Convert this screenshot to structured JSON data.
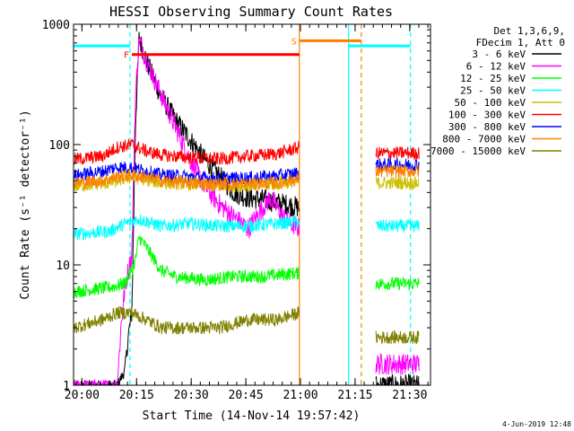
{
  "chart_data": {
    "type": "line",
    "title": "HESSI Observing Summary Count Rates",
    "xlabel": "Start Time (14-Nov-14 19:57:42)",
    "ylabel": "Count Rate (s⁻¹ detector⁻¹)",
    "x_unit": "minutes since 19:57:42",
    "xlim": [
      0,
      98
    ],
    "ylim": [
      1,
      1000
    ],
    "y_scale": "log",
    "x_ticks": [
      {
        "x": 2.3,
        "label": "20:00"
      },
      {
        "x": 17.3,
        "label": "20:15"
      },
      {
        "x": 32.3,
        "label": "20:30"
      },
      {
        "x": 47.3,
        "label": "20:45"
      },
      {
        "x": 62.3,
        "label": "21:00"
      },
      {
        "x": 77.3,
        "label": "21:15"
      },
      {
        "x": 92.3,
        "label": "21:30"
      }
    ],
    "y_ticks": [
      {
        "y": 1,
        "label": "1"
      },
      {
        "y": 10,
        "label": "10"
      },
      {
        "y": 100,
        "label": "100"
      },
      {
        "y": 1000,
        "label": "1000"
      }
    ],
    "legend": {
      "position": "right",
      "header": [
        "Det 1,3,6,9,",
        "FDecim 1, Att 0"
      ]
    },
    "series": [
      {
        "name": "3 - 6 keV",
        "color": "#000000",
        "x": [
          0,
          12,
          14,
          15,
          16,
          17,
          18,
          20,
          24,
          28,
          32,
          36,
          40,
          44,
          48,
          52,
          56,
          60,
          62
        ],
        "y": [
          1,
          1,
          1.3,
          2.5,
          4,
          150,
          760,
          500,
          250,
          160,
          110,
          75,
          55,
          40,
          36,
          35,
          33,
          31,
          30
        ]
      },
      {
        "name": "6 - 12 keV",
        "color": "#ff00ff",
        "x": [
          0,
          12,
          13,
          14,
          15,
          16,
          17,
          18,
          20,
          24,
          28,
          32,
          36,
          40,
          44,
          48,
          52,
          54,
          58,
          62
        ],
        "y": [
          1,
          1,
          3,
          6,
          9,
          12,
          250,
          750,
          500,
          260,
          140,
          75,
          45,
          32,
          25,
          20,
          30,
          36,
          24,
          20
        ]
      },
      {
        "name": "12 - 25 keV",
        "color": "#00ff00",
        "x": [
          0,
          10,
          14,
          16,
          17,
          18,
          20,
          24,
          28,
          36,
          44,
          52,
          60,
          62
        ],
        "y": [
          6,
          6.5,
          7,
          9,
          11,
          17,
          14,
          9,
          8,
          7.5,
          8,
          8,
          8.5,
          8.5
        ]
      },
      {
        "name": "25 - 50 keV",
        "color": "#00ffff",
        "x": [
          0,
          10,
          14,
          16,
          18,
          24,
          32,
          40,
          48,
          56,
          62
        ],
        "y": [
          18,
          19,
          22,
          23,
          24,
          21,
          22,
          21,
          21,
          22,
          23
        ]
      },
      {
        "name": "50 - 100 keV",
        "color": "#ccc000",
        "x": [
          0,
          10,
          14,
          16,
          18,
          24,
          32,
          40,
          48,
          56,
          62
        ],
        "y": [
          45,
          48,
          52,
          54,
          52,
          48,
          47,
          45,
          46,
          47,
          50
        ]
      },
      {
        "name": "100 - 300 keV",
        "color": "#ff0000",
        "x": [
          0,
          8,
          12,
          16,
          20,
          24,
          32,
          40,
          48,
          56,
          62
        ],
        "y": [
          75,
          80,
          95,
          100,
          88,
          82,
          78,
          76,
          80,
          84,
          95
        ]
      },
      {
        "name": "300 - 800 keV",
        "color": "#0000ff",
        "x": [
          0,
          8,
          12,
          16,
          20,
          24,
          32,
          40,
          48,
          56,
          62
        ],
        "y": [
          55,
          60,
          65,
          64,
          60,
          56,
          54,
          52,
          53,
          55,
          58
        ]
      },
      {
        "name": "800 - 7000 keV",
        "color": "#ff8000",
        "x": [
          0,
          8,
          12,
          16,
          20,
          24,
          32,
          40,
          48,
          56,
          62
        ],
        "y": [
          48,
          50,
          54,
          56,
          53,
          50,
          48,
          47,
          47,
          48,
          52
        ]
      },
      {
        "name": "7000 - 15000 keV",
        "color": "#808000",
        "x": [
          0,
          8,
          12,
          16,
          20,
          24,
          32,
          40,
          48,
          56,
          62
        ],
        "y": [
          3,
          3.5,
          4,
          4,
          3.5,
          3,
          3,
          3,
          3.5,
          3.5,
          4
        ]
      }
    ],
    "late_segment": {
      "x_range": [
        83,
        95
      ],
      "values": {
        "3 - 6 keV": 1,
        "6 - 12 keV": 1.5,
        "12 - 25 keV": 7,
        "25 - 50 keV": 21,
        "50 - 100 keV": 48,
        "100 - 300 keV": 85,
        "300 - 800 keV": 68,
        "800 - 7000 keV": 60,
        "7000 - 15000 keV": 2.5
      }
    },
    "annotations": [
      {
        "label": "F",
        "color": "#ff0000",
        "x_start": 16,
        "x_end": 62,
        "y": 560
      },
      {
        "label": "S",
        "color": "#ff8000",
        "x_start": 62,
        "x_end": 79,
        "y": 730
      }
    ],
    "cyan_bars": [
      {
        "x_start": 0,
        "x_end": 15.5,
        "y": 660
      },
      {
        "x_start": 75.5,
        "x_end": 92.5,
        "y": 660
      }
    ],
    "vertical_lines": [
      {
        "x": 15.5,
        "color": "#00ffff",
        "style": "dashed"
      },
      {
        "x": 62,
        "color": "#ff8000",
        "style": "solid"
      },
      {
        "x": 75.5,
        "color": "#00ffff",
        "style": "solid"
      },
      {
        "x": 79,
        "color": "#ff8000",
        "style": "dashed"
      },
      {
        "x": 92.5,
        "color": "#00ffff",
        "style": "dashed"
      }
    ]
  },
  "footer": {
    "date_stamp": "4-Jun-2019 12:48"
  }
}
